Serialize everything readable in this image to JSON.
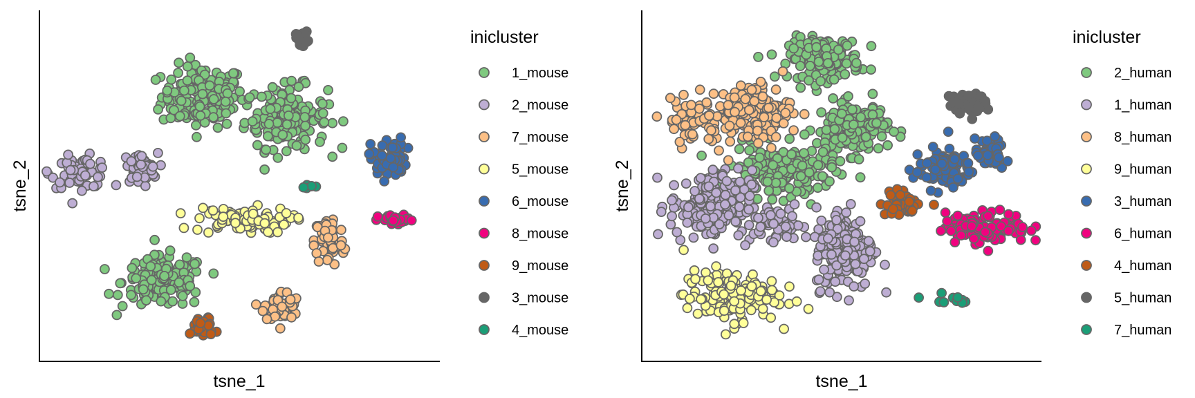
{
  "chart_data": [
    {
      "type": "scatter",
      "xlabel": "tsne_1",
      "ylabel": "tsne_2",
      "grid": false,
      "axis_ticks": false,
      "legend": {
        "title": "inicluster",
        "placement": "right",
        "entries": [
          {
            "label": "1_mouse",
            "color": "#7FC97F"
          },
          {
            "label": "2_mouse",
            "color": "#BEAED4"
          },
          {
            "label": "7_mouse",
            "color": "#FDC086"
          },
          {
            "label": "5_mouse",
            "color": "#FFFF99"
          },
          {
            "label": "6_mouse",
            "color": "#386CB0"
          },
          {
            "label": "8_mouse",
            "color": "#F0027F"
          },
          {
            "label": "9_mouse",
            "color": "#BF5B17"
          },
          {
            "label": "3_mouse",
            "color": "#666666"
          },
          {
            "label": "4_mouse",
            "color": "#1B9E77"
          }
        ]
      },
      "clusters": [
        {
          "label": "1_mouse",
          "n": 170,
          "center": [
            0.41,
            0.76
          ],
          "spread": [
            0.07,
            0.06
          ]
        },
        {
          "label": "1_mouse",
          "n": 150,
          "center": [
            0.62,
            0.7
          ],
          "spread": [
            0.07,
            0.06
          ]
        },
        {
          "label": "1_mouse",
          "n": 160,
          "center": [
            0.31,
            0.22
          ],
          "spread": [
            0.07,
            0.05
          ]
        },
        {
          "label": "2_mouse",
          "n": 60,
          "center": [
            0.1,
            0.54
          ],
          "spread": [
            0.05,
            0.03
          ]
        },
        {
          "label": "2_mouse",
          "n": 45,
          "center": [
            0.25,
            0.55
          ],
          "spread": [
            0.03,
            0.03
          ]
        },
        {
          "label": "7_mouse",
          "n": 65,
          "center": [
            0.73,
            0.34
          ],
          "spread": [
            0.025,
            0.05
          ]
        },
        {
          "label": "7_mouse",
          "n": 55,
          "center": [
            0.61,
            0.15
          ],
          "spread": [
            0.03,
            0.03
          ]
        },
        {
          "label": "5_mouse",
          "n": 90,
          "center": [
            0.51,
            0.4
          ],
          "spread": [
            0.08,
            0.025
          ]
        },
        {
          "label": "6_mouse",
          "n": 55,
          "center": [
            0.88,
            0.58
          ],
          "spread": [
            0.03,
            0.04
          ]
        },
        {
          "label": "8_mouse",
          "n": 30,
          "center": [
            0.9,
            0.4
          ],
          "spread": [
            0.03,
            0.01
          ]
        },
        {
          "label": "9_mouse",
          "n": 40,
          "center": [
            0.41,
            0.09
          ],
          "spread": [
            0.02,
            0.02
          ]
        },
        {
          "label": "3_mouse",
          "n": 25,
          "center": [
            0.66,
            0.93
          ],
          "spread": [
            0.01,
            0.012
          ]
        },
        {
          "label": "4_mouse",
          "n": 6,
          "center": [
            0.68,
            0.5
          ],
          "spread": [
            0.015,
            0.004
          ]
        }
      ]
    },
    {
      "type": "scatter",
      "xlabel": "tsne_1",
      "ylabel": "tsne_2",
      "grid": false,
      "axis_ticks": false,
      "legend": {
        "title": "inicluster",
        "placement": "right",
        "entries": [
          {
            "label": "2_human",
            "color": "#7FC97F"
          },
          {
            "label": "1_human",
            "color": "#BEAED4"
          },
          {
            "label": "8_human",
            "color": "#FDC086"
          },
          {
            "label": "9_human",
            "color": "#FFFF99"
          },
          {
            "label": "3_human",
            "color": "#386CB0"
          },
          {
            "label": "6_human",
            "color": "#F0027F"
          },
          {
            "label": "4_human",
            "color": "#BF5B17"
          },
          {
            "label": "5_human",
            "color": "#666666"
          },
          {
            "label": "7_human",
            "color": "#1B9E77"
          }
        ]
      },
      "clusters": [
        {
          "label": "2_human",
          "n": 150,
          "center": [
            0.46,
            0.87
          ],
          "spread": [
            0.06,
            0.04
          ]
        },
        {
          "label": "2_human",
          "n": 150,
          "center": [
            0.53,
            0.67
          ],
          "spread": [
            0.06,
            0.05
          ]
        },
        {
          "label": "2_human",
          "n": 180,
          "center": [
            0.35,
            0.54
          ],
          "spread": [
            0.09,
            0.05
          ]
        },
        {
          "label": "1_human",
          "n": 180,
          "center": [
            0.17,
            0.44
          ],
          "spread": [
            0.07,
            0.07
          ]
        },
        {
          "label": "1_human",
          "n": 50,
          "center": [
            0.34,
            0.39
          ],
          "spread": [
            0.04,
            0.03
          ]
        },
        {
          "label": "1_human",
          "n": 200,
          "center": [
            0.51,
            0.32
          ],
          "spread": [
            0.05,
            0.08
          ]
        },
        {
          "label": "8_human",
          "n": 50,
          "center": [
            0.12,
            0.69
          ],
          "spread": [
            0.05,
            0.04
          ]
        },
        {
          "label": "8_human",
          "n": 150,
          "center": [
            0.27,
            0.71
          ],
          "spread": [
            0.07,
            0.06
          ]
        },
        {
          "label": "9_human",
          "n": 140,
          "center": [
            0.22,
            0.18
          ],
          "spread": [
            0.08,
            0.05
          ]
        },
        {
          "label": "3_human",
          "n": 90,
          "center": [
            0.76,
            0.55
          ],
          "spread": [
            0.05,
            0.04
          ]
        },
        {
          "label": "3_human",
          "n": 50,
          "center": [
            0.88,
            0.59
          ],
          "spread": [
            0.025,
            0.03
          ]
        },
        {
          "label": "6_human",
          "n": 120,
          "center": [
            0.87,
            0.38
          ],
          "spread": [
            0.07,
            0.03
          ]
        },
        {
          "label": "4_human",
          "n": 40,
          "center": [
            0.66,
            0.45
          ],
          "spread": [
            0.04,
            0.025
          ]
        },
        {
          "label": "5_human",
          "n": 50,
          "center": [
            0.82,
            0.74
          ],
          "spread": [
            0.03,
            0.02
          ]
        },
        {
          "label": "7_human",
          "n": 10,
          "center": [
            0.77,
            0.17
          ],
          "spread": [
            0.04,
            0.01
          ]
        }
      ]
    }
  ]
}
